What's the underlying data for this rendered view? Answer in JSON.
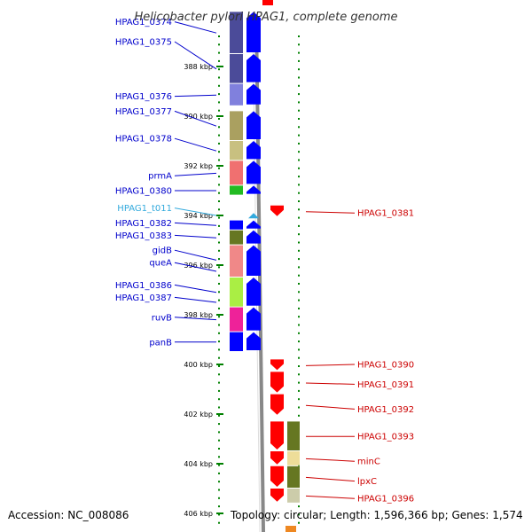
{
  "title": "Helicobacter pylori HPAG1, complete genome",
  "accession": "Accession: NC_008086",
  "summary": "Topology: circular; Length: 1,596,366 bp; Genes: 1,574",
  "colors": {
    "left_label": "#0000cc",
    "right_label": "#cc0000",
    "trna_label": "#33aadd",
    "forward_arrow": "#0000ff",
    "reverse_arrow": "#ff0000",
    "dots": "#008000"
  },
  "ticks": [
    {
      "label": "388 kbp",
      "kbp": 388
    },
    {
      "label": "390 kbp",
      "kbp": 390
    },
    {
      "label": "392 kbp",
      "kbp": 392
    },
    {
      "label": "394 kbp",
      "kbp": 394
    },
    {
      "label": "396 kbp",
      "kbp": 396
    },
    {
      "label": "398 kbp",
      "kbp": 398
    },
    {
      "label": "400 kbp",
      "kbp": 400
    },
    {
      "label": "402 kbp",
      "kbp": 402
    },
    {
      "label": "404 kbp",
      "kbp": 404
    },
    {
      "label": "406 kbp",
      "kbp": 406
    }
  ],
  "left_genes": [
    {
      "label": "HPAG1_0374",
      "kbp": 386.2,
      "color": "#4b4b99",
      "start_kbp": 385.8,
      "end_kbp": 387.5
    },
    {
      "label": "HPAG1_0375",
      "kbp": 387.0,
      "color": "#4b4b99",
      "start_kbp": 387.5,
      "end_kbp": 388.7
    },
    {
      "label": "HPAG1_0376",
      "kbp": 389.2,
      "color": "#8080dd",
      "start_kbp": 388.7,
      "end_kbp": 389.6
    },
    {
      "label": "HPAG1_0377",
      "kbp": 389.8,
      "color": "#aaa060",
      "start_kbp": 389.8,
      "end_kbp": 391.0
    },
    {
      "label": "HPAG1_0378",
      "kbp": 390.9,
      "color": "#c8c080",
      "start_kbp": 391.0,
      "end_kbp": 391.8
    },
    {
      "label": "prmA",
      "kbp": 392.4,
      "color": "#f07070",
      "start_kbp": 391.8,
      "end_kbp": 392.8
    },
    {
      "label": "HPAG1_0380",
      "kbp": 393.0,
      "color": "#22bb22",
      "start_kbp": 392.8,
      "end_kbp": 393.2
    },
    {
      "label": "HPAG1_t011",
      "kbp": 393.7,
      "color": "#33aadd",
      "start_kbp": 393.9,
      "end_kbp": 394.1,
      "trna": true
    },
    {
      "label": "HPAG1_0382",
      "kbp": 394.3,
      "color": "#0000ff",
      "start_kbp": 394.2,
      "end_kbp": 394.6
    },
    {
      "label": "HPAG1_0383",
      "kbp": 394.8,
      "color": "#667722",
      "start_kbp": 394.6,
      "end_kbp": 395.2
    },
    {
      "label": "gidB",
      "kbp": 395.4,
      "color": "#f08888",
      "start_kbp": 395.2,
      "end_kbp": 396.4
    },
    {
      "label": "queA",
      "kbp": 395.9,
      "color": "#f08888",
      "start_kbp": 396.0,
      "end_kbp": 396.5
    },
    {
      "label": "HPAG1_0386",
      "kbp": 396.8,
      "color": "#aaee44",
      "start_kbp": 396.5,
      "end_kbp": 397.7
    },
    {
      "label": "HPAG1_0387",
      "kbp": 397.3,
      "color": "#aaee44",
      "start_kbp": 397.3,
      "end_kbp": 397.7
    },
    {
      "label": "ruvB",
      "kbp": 398.1,
      "color": "#ee2299",
      "start_kbp": 397.7,
      "end_kbp": 398.7
    },
    {
      "label": "panB",
      "kbp": 399.1,
      "color": "#0000ff",
      "start_kbp": 398.7,
      "end_kbp": 399.5
    }
  ],
  "right_genes": [
    {
      "label": "HPAG1_0381",
      "kbp": 393.9,
      "color": "#cc0000",
      "start_kbp": 393.6,
      "end_kbp": 394.1
    },
    {
      "label": "HPAG1_0390",
      "kbp": 400.0,
      "color": "#cc0000",
      "start_kbp": 399.8,
      "end_kbp": 400.3
    },
    {
      "label": "HPAG1_0391",
      "kbp": 400.8,
      "color": "#cc0000",
      "start_kbp": 400.3,
      "end_kbp": 401.2
    },
    {
      "label": "HPAG1_0392",
      "kbp": 401.8,
      "color": "#cc0000",
      "start_kbp": 401.2,
      "end_kbp": 402.1
    },
    {
      "label": "HPAG1_0393",
      "kbp": 402.9,
      "color": "#667722",
      "start_kbp": 402.3,
      "end_kbp": 403.5
    },
    {
      "label": "minC",
      "kbp": 403.9,
      "color": "#eedd99",
      "start_kbp": 403.5,
      "end_kbp": 404.1
    },
    {
      "label": "lpxC",
      "kbp": 404.7,
      "color": "#667722",
      "start_kbp": 404.1,
      "end_kbp": 405.0
    },
    {
      "label": "HPAG1_0396",
      "kbp": 405.4,
      "color": "#ccccaa",
      "start_kbp": 405.0,
      "end_kbp": 405.6
    }
  ]
}
